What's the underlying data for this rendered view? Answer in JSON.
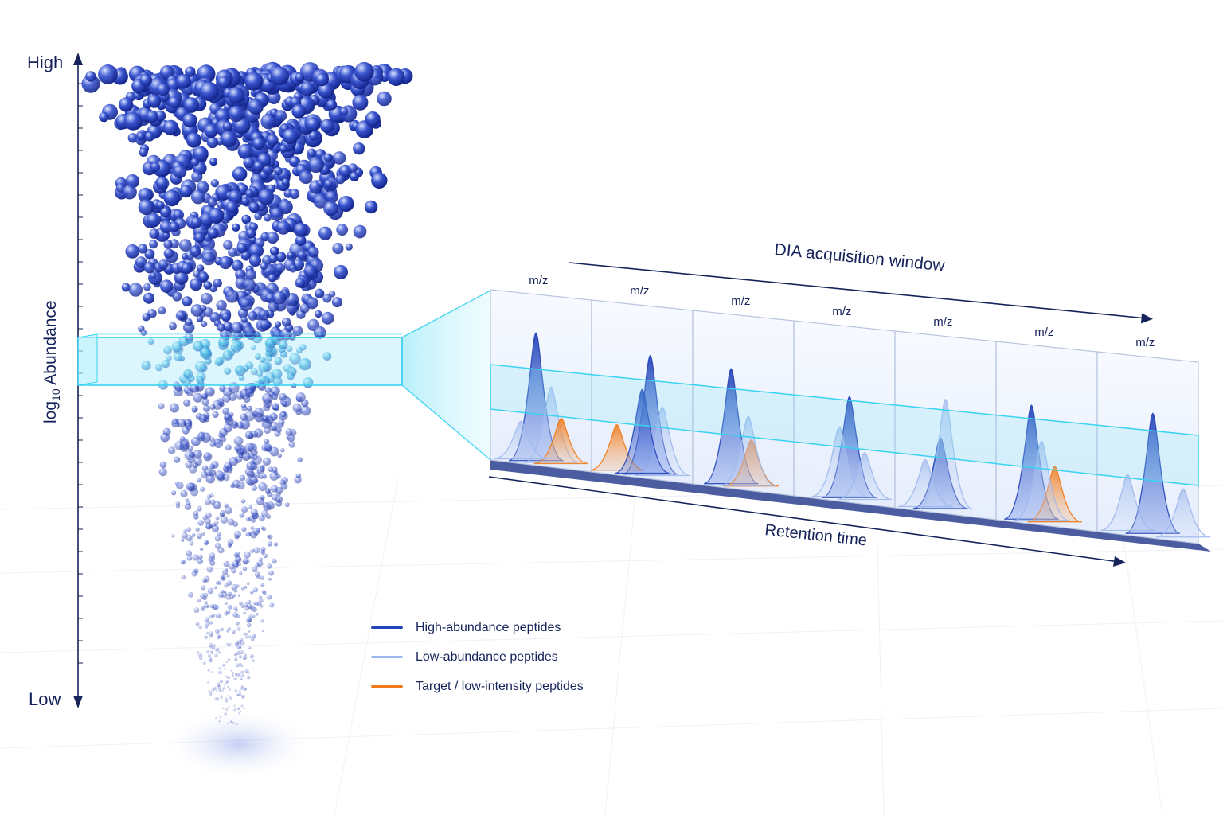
{
  "axis": {
    "high_label": "High",
    "low_label": "Low",
    "title_prefix": "log",
    "title_subscript": "10",
    "title_suffix": " Abundance"
  },
  "acquisition": {
    "title": "DIA acquisition window",
    "x_label": "Retention time",
    "panel_label": "m/z",
    "panel_count": 7
  },
  "legend": [
    {
      "label": "High-abundance peptides",
      "color": "#2445b8"
    },
    {
      "label": "Low-abundance peptides",
      "color": "#9cb8ec"
    },
    {
      "label": "Target / low-intensity peptides",
      "color": "#f07a1a"
    }
  ],
  "colors": {
    "accent": "#16235a",
    "window": "#38d3f0",
    "high": "#2445b8",
    "low": "#9cb8ec",
    "target": "#f07a1a"
  },
  "icons": [
    "arrow-up-icon",
    "arrow-down-icon",
    "arrow-right-icon"
  ]
}
